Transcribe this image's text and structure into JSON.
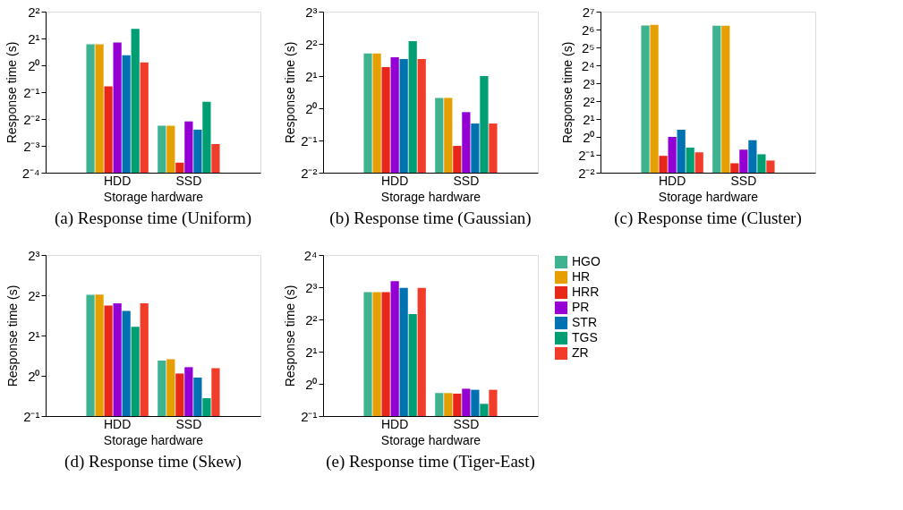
{
  "chart_data": [
    {
      "type": "bar",
      "title": "(a) Response time (Uniform)",
      "xlabel": "Storage hardware",
      "ylabel": "Response time (s)",
      "categories": [
        "HDD",
        "SSD"
      ],
      "log": "y",
      "grid": false,
      "legend": false,
      "ylim": [
        0.0625,
        4
      ],
      "yticks": [
        {
          "value": 0.0625,
          "label": "2⁻⁴"
        },
        {
          "value": 0.125,
          "label": "2⁻³"
        },
        {
          "value": 0.25,
          "label": "2⁻²"
        },
        {
          "value": 0.5,
          "label": "2⁻¹"
        },
        {
          "value": 1,
          "label": "2⁰"
        },
        {
          "value": 2,
          "label": "2¹"
        },
        {
          "value": 4,
          "label": "2²"
        }
      ],
      "series": [
        {
          "color": "#3fb38f",
          "values": [
            1.72,
            0.21
          ]
        },
        {
          "color": "#e69f00",
          "values": [
            1.72,
            0.21
          ]
        },
        {
          "color": "#e8261a",
          "values": [
            0.58,
            0.081
          ]
        },
        {
          "color": "#9400d3",
          "values": [
            1.8,
            0.235
          ]
        },
        {
          "color": "#0072b2",
          "values": [
            1.3,
            0.19
          ]
        },
        {
          "color": "#009e73",
          "values": [
            2.56,
            0.39
          ]
        },
        {
          "color": "#f03c28",
          "values": [
            1.08,
            0.131
          ]
        }
      ]
    },
    {
      "type": "bar",
      "title": "(b) Response time (Gaussian)",
      "xlabel": "Storage hardware",
      "ylabel": "Response time (s)",
      "categories": [
        "HDD",
        "SSD"
      ],
      "log": "y",
      "grid": false,
      "legend": false,
      "ylim": [
        0.25,
        8
      ],
      "yticks": [
        {
          "value": 0.25,
          "label": "2⁻²"
        },
        {
          "value": 0.5,
          "label": "2⁻¹"
        },
        {
          "value": 1,
          "label": "2⁰"
        },
        {
          "value": 2,
          "label": "2¹"
        },
        {
          "value": 4,
          "label": "2²"
        },
        {
          "value": 8,
          "label": "2³"
        }
      ],
      "series": [
        {
          "color": "#3fb38f",
          "values": [
            3.25,
            1.25
          ]
        },
        {
          "color": "#e69f00",
          "values": [
            3.25,
            1.25
          ]
        },
        {
          "color": "#e8261a",
          "values": [
            2.42,
            0.445
          ]
        },
        {
          "color": "#9400d3",
          "values": [
            3.0,
            0.92
          ]
        },
        {
          "color": "#0072b2",
          "values": [
            2.89,
            0.72
          ]
        },
        {
          "color": "#009e73",
          "values": [
            4.24,
            2.0
          ]
        },
        {
          "color": "#f03c28",
          "values": [
            2.89,
            0.72
          ]
        }
      ]
    },
    {
      "type": "bar",
      "title": "(c) Response time (Cluster)",
      "xlabel": "Storage hardware",
      "ylabel": "Response time (s)",
      "categories": [
        "HDD",
        "SSD"
      ],
      "log": "y",
      "grid": false,
      "legend": false,
      "ylim": [
        0.25,
        128
      ],
      "yticks": [
        {
          "value": 0.25,
          "label": "2⁻²"
        },
        {
          "value": 0.5,
          "label": "2⁻¹"
        },
        {
          "value": 1,
          "label": "2⁰"
        },
        {
          "value": 2,
          "label": "2¹"
        },
        {
          "value": 4,
          "label": "2²"
        },
        {
          "value": 8,
          "label": "2³"
        },
        {
          "value": 16,
          "label": "2⁴"
        },
        {
          "value": 32,
          "label": "2⁵"
        },
        {
          "value": 64,
          "label": "2⁶"
        },
        {
          "value": 128,
          "label": "2⁷"
        }
      ],
      "series": [
        {
          "color": "#3fb38f",
          "values": [
            75,
            74
          ]
        },
        {
          "color": "#e69f00",
          "values": [
            77,
            74
          ]
        },
        {
          "color": "#e8261a",
          "values": [
            0.48,
            0.36
          ]
        },
        {
          "color": "#9400d3",
          "values": [
            1.0,
            0.61
          ]
        },
        {
          "color": "#0072b2",
          "values": [
            1.32,
            0.88
          ]
        },
        {
          "color": "#009e73",
          "values": [
            0.66,
            0.51
          ]
        },
        {
          "color": "#f03c28",
          "values": [
            0.55,
            0.4
          ]
        }
      ]
    },
    {
      "type": "bar",
      "title": "(d) Response time (Skew)",
      "xlabel": "Storage hardware",
      "ylabel": "Response time (s)",
      "categories": [
        "HDD",
        "SSD"
      ],
      "log": "y",
      "grid": false,
      "legend": false,
      "ylim": [
        0.5,
        8
      ],
      "yticks": [
        {
          "value": 0.5,
          "label": "2⁻¹"
        },
        {
          "value": 1,
          "label": "2⁰"
        },
        {
          "value": 2,
          "label": "2¹"
        },
        {
          "value": 4,
          "label": "2²"
        },
        {
          "value": 8,
          "label": "2³"
        }
      ],
      "series": [
        {
          "color": "#3fb38f",
          "values": [
            4.03,
            1.3
          ]
        },
        {
          "color": "#e69f00",
          "values": [
            4.05,
            1.33
          ]
        },
        {
          "color": "#e8261a",
          "values": [
            3.35,
            1.04
          ]
        },
        {
          "color": "#9400d3",
          "values": [
            3.48,
            1.16
          ]
        },
        {
          "color": "#0072b2",
          "values": [
            3.06,
            0.97
          ]
        },
        {
          "color": "#009e73",
          "values": [
            2.32,
            0.68
          ]
        },
        {
          "color": "#f03c28",
          "values": [
            3.48,
            1.14
          ]
        }
      ]
    },
    {
      "type": "bar",
      "title": "(e) Response time (Tiger-East)",
      "xlabel": "Storage hardware",
      "ylabel": "Response time (s)",
      "categories": [
        "HDD",
        "SSD"
      ],
      "log": "y",
      "grid": false,
      "legend": "right",
      "ylim": [
        0.5,
        16
      ],
      "yticks": [
        {
          "value": 0.5,
          "label": "2⁻¹"
        },
        {
          "value": 1,
          "label": "2⁰"
        },
        {
          "value": 2,
          "label": "2¹"
        },
        {
          "value": 4,
          "label": "2²"
        },
        {
          "value": 8,
          "label": "2³"
        },
        {
          "value": 16,
          "label": "2⁴"
        }
      ],
      "series": [
        {
          "name": "HGO",
          "color": "#3fb38f",
          "values": [
            7.2,
            0.82
          ]
        },
        {
          "name": "HR",
          "color": "#e69f00",
          "values": [
            7.2,
            0.82
          ]
        },
        {
          "name": "HRR",
          "color": "#e8261a",
          "values": [
            7.2,
            0.81
          ]
        },
        {
          "name": "PR",
          "color": "#9400d3",
          "values": [
            9.1,
            0.9
          ]
        },
        {
          "name": "STR",
          "color": "#0072b2",
          "values": [
            7.9,
            0.88
          ]
        },
        {
          "name": "TGS",
          "color": "#009e73",
          "values": [
            4.5,
            0.65
          ]
        },
        {
          "name": "ZR",
          "color": "#f03c28",
          "values": [
            7.9,
            0.88
          ]
        }
      ]
    }
  ]
}
